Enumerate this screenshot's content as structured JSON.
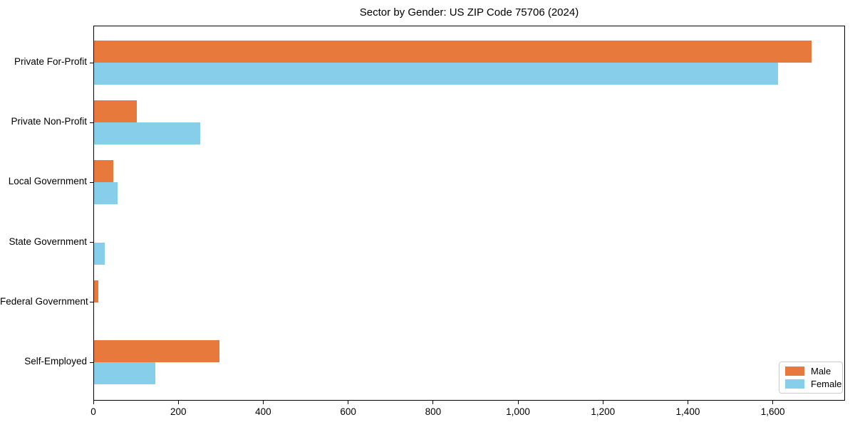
{
  "chart_data": {
    "type": "bar",
    "orientation": "horizontal",
    "title": "Sector by Gender: US ZIP Code 75706 (2024)",
    "categories": [
      "Private For-Profit",
      "Private Non-Profit",
      "Local Government",
      "State Government",
      "Federal Government",
      "Self-Employed"
    ],
    "series": [
      {
        "name": "Male",
        "color": "#e8793d",
        "values": [
          1690,
          100,
          45,
          0,
          10,
          295
        ]
      },
      {
        "name": "Female",
        "color": "#87ceeb",
        "values": [
          1610,
          250,
          55,
          25,
          0,
          145
        ]
      }
    ],
    "xlabel": "",
    "ylabel": "",
    "xlim": [
      0,
      1770
    ],
    "xticks": {
      "values": [
        0,
        200,
        400,
        600,
        800,
        1000,
        1200,
        1400,
        1600
      ],
      "labels": [
        "0",
        "200",
        "400",
        "600",
        "800",
        "1,000",
        "1,200",
        "1,400",
        "1,600"
      ]
    },
    "grid": false,
    "legend_position": "lower right",
    "axis_color": "#000000",
    "background_color": "#ffffff"
  }
}
